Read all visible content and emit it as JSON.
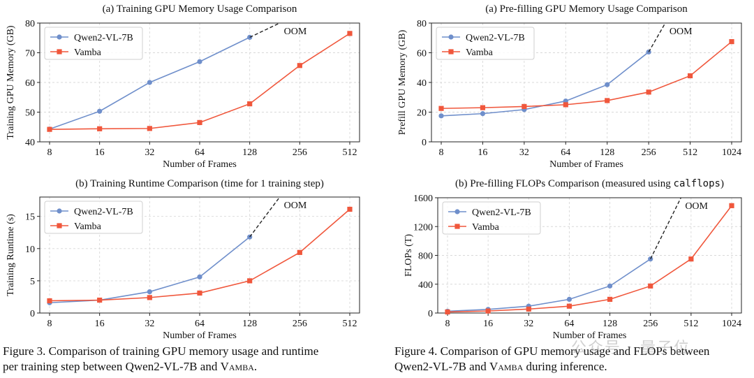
{
  "colors": {
    "qwen": "#6f8fcb",
    "vamba": "#f0573c",
    "grid": "#d8d8d8",
    "axis": "#222222",
    "oom": "#222222"
  },
  "figure3_caption": {
    "prefix": "Figure 3. Comparison of training GPU memory usage and runtime",
    "line2_prefix": "per training step between Qwen2-VL-7B and ",
    "model_name": "Vamba",
    "suffix": "."
  },
  "figure4_caption": {
    "prefix": "Figure 4. Comparison of GPU memory usage and FLOPs between",
    "line2_prefix": "Qwen2-VL-7B and ",
    "model_name": "Vamba",
    "suffix": " during inference."
  },
  "watermark": "公众号 · 量子位",
  "chart_data": [
    {
      "id": "train-mem",
      "type": "line",
      "title": "(a) Training GPU Memory Usage Comparison",
      "xlabel": "Number of Frames",
      "ylabel": "Training GPU Memory (GB)",
      "categories": [
        "8",
        "16",
        "32",
        "64",
        "128",
        "256",
        "512"
      ],
      "ylim": [
        40,
        80
      ],
      "yticks": [
        40,
        50,
        60,
        70,
        80
      ],
      "legend": "top-left",
      "oom_label": "OOM",
      "oom_target": [
        4.6,
        80
      ],
      "series": [
        {
          "name": "Qwen2-VL-7B",
          "marker": "circle",
          "values": [
            44.3,
            50.3,
            60.0,
            67.0,
            75.2,
            null,
            null
          ]
        },
        {
          "name": "Vamba",
          "marker": "square",
          "values": [
            44.2,
            44.4,
            44.5,
            46.5,
            52.8,
            65.7,
            76.5
          ]
        }
      ]
    },
    {
      "id": "prefill-mem",
      "type": "line",
      "title": "(a) Pre-filling GPU Memory Usage Comparison",
      "xlabel": "Number of Frames",
      "ylabel": "Prefill GPU Memory (GB)",
      "categories": [
        "8",
        "16",
        "32",
        "64",
        "128",
        "256",
        "512",
        "1024"
      ],
      "ylim": [
        0,
        80
      ],
      "yticks": [
        0,
        20,
        40,
        60,
        80
      ],
      "legend": "top-left",
      "oom_label": "OOM",
      "oom_target": [
        5.4,
        80
      ],
      "series": [
        {
          "name": "Qwen2-VL-7B",
          "marker": "circle",
          "values": [
            17.5,
            19.0,
            21.7,
            27.5,
            38.5,
            60.5,
            null,
            null
          ]
        },
        {
          "name": "Vamba",
          "marker": "square",
          "values": [
            22.5,
            23.0,
            23.8,
            25.0,
            27.8,
            33.5,
            44.5,
            67.5
          ]
        }
      ]
    },
    {
      "id": "train-runtime",
      "type": "line",
      "title": "(b) Training Runtime Comparison (time for 1 training step)",
      "xlabel": "Number of Frames",
      "ylabel": "Training Runtime (s)",
      "categories": [
        "8",
        "16",
        "32",
        "64",
        "128",
        "256",
        "512"
      ],
      "ylim": [
        0,
        18
      ],
      "yticks": [
        0,
        5,
        10,
        15
      ],
      "legend": "top-left",
      "oom_label": "OOM",
      "oom_target": [
        4.6,
        18
      ],
      "series": [
        {
          "name": "Qwen2-VL-7B",
          "marker": "circle",
          "values": [
            1.6,
            2.0,
            3.3,
            5.6,
            11.8,
            null,
            null
          ]
        },
        {
          "name": "Vamba",
          "marker": "square",
          "values": [
            1.9,
            2.0,
            2.4,
            3.1,
            5.0,
            9.4,
            16.1
          ]
        }
      ]
    },
    {
      "id": "prefill-flops",
      "type": "line",
      "title": "(b) Pre-filling FLOPs Comparison (measured using ",
      "title_code": "calflops",
      "title_end": ")",
      "xlabel": "Number of Frames",
      "ylabel": "FLOPs (T)",
      "categories": [
        "8",
        "16",
        "32",
        "64",
        "128",
        "256",
        "512",
        "1024"
      ],
      "ylim": [
        0,
        1600
      ],
      "yticks": [
        0,
        400,
        800,
        1200,
        1600
      ],
      "legend": "top-left",
      "oom_label": "OOM",
      "oom_target": [
        5.75,
        1600
      ],
      "series": [
        {
          "name": "Qwen2-VL-7B",
          "marker": "circle",
          "values": [
            25,
            50,
            95,
            190,
            375,
            750,
            null,
            null
          ]
        },
        {
          "name": "Vamba",
          "marker": "square",
          "values": [
            15,
            28,
            55,
            95,
            190,
            375,
            750,
            1490
          ]
        }
      ]
    }
  ]
}
